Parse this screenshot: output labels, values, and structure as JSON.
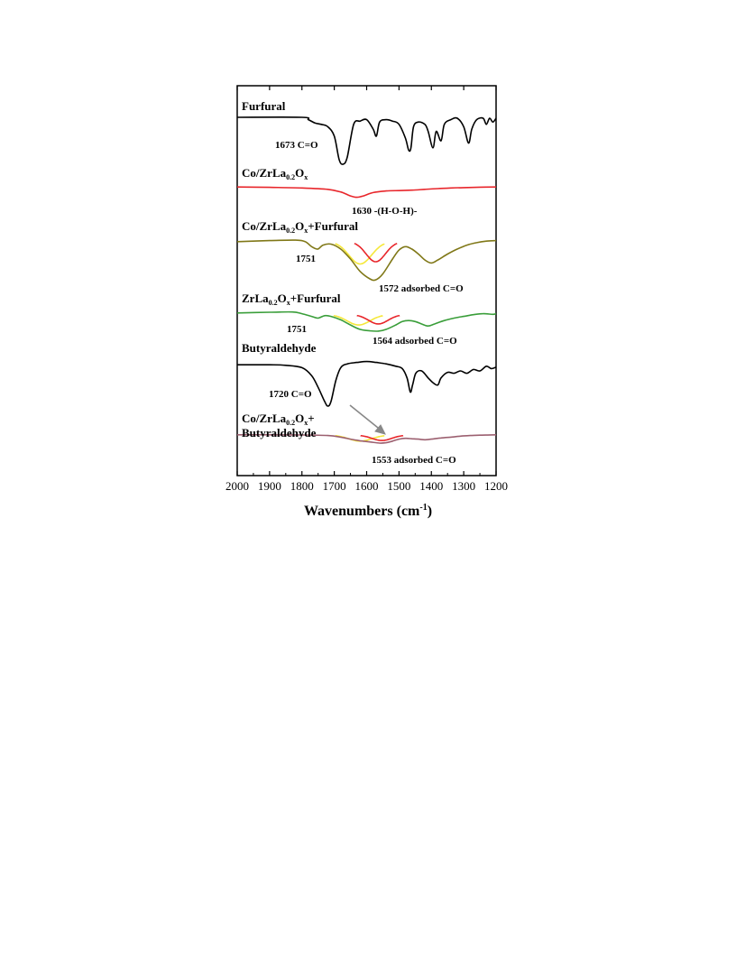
{
  "chart_data": {
    "type": "line",
    "title": "",
    "xlabel": "Wavenumbers (cm",
    "xlabel_sup": "-1",
    "xlabel_close": ")",
    "ylabel": "",
    "xlim": [
      2000,
      1200
    ],
    "x_reversed": true,
    "x_ticks": [
      "2000",
      "1900",
      "1800",
      "1700",
      "1600",
      "1500",
      "1400",
      "1300",
      "1200"
    ],
    "grid": false,
    "series": [
      {
        "name": "Furfural",
        "label_parts": [
          {
            "t": "Furfural"
          }
        ],
        "color": "#000000",
        "offset": 0,
        "points": [
          [
            2000,
            1.0
          ],
          [
            1800,
            1.0
          ],
          [
            1780,
            0.95
          ],
          [
            1760,
            0.88
          ],
          [
            1740,
            0.85
          ],
          [
            1720,
            0.8
          ],
          [
            1700,
            0.6
          ],
          [
            1685,
            0.1
          ],
          [
            1673,
            0.0
          ],
          [
            1660,
            0.15
          ],
          [
            1640,
            0.85
          ],
          [
            1620,
            0.92
          ],
          [
            1600,
            0.95
          ],
          [
            1580,
            0.75
          ],
          [
            1570,
            0.6
          ],
          [
            1560,
            0.9
          ],
          [
            1540,
            0.95
          ],
          [
            1520,
            0.92
          ],
          [
            1500,
            0.85
          ],
          [
            1480,
            0.55
          ],
          [
            1470,
            0.3
          ],
          [
            1463,
            0.35
          ],
          [
            1455,
            0.8
          ],
          [
            1440,
            0.9
          ],
          [
            1420,
            0.85
          ],
          [
            1410,
            0.7
          ],
          [
            1395,
            0.35
          ],
          [
            1385,
            0.7
          ],
          [
            1370,
            0.5
          ],
          [
            1360,
            0.85
          ],
          [
            1340,
            0.95
          ],
          [
            1320,
            0.98
          ],
          [
            1300,
            0.8
          ],
          [
            1285,
            0.45
          ],
          [
            1275,
            0.75
          ],
          [
            1260,
            0.95
          ],
          [
            1240,
            0.98
          ],
          [
            1230,
            0.85
          ],
          [
            1220,
            0.98
          ],
          [
            1210,
            0.9
          ],
          [
            1200,
            0.98
          ]
        ],
        "annotations": [
          {
            "text": "1673 C=O"
          }
        ]
      },
      {
        "name": "Co/ZrLa0.2Ox",
        "label_parts": [
          {
            "t": "Co/ZrLa"
          },
          {
            "t": "0.2",
            "sub": true
          },
          {
            "t": "O"
          },
          {
            "t": "x",
            "sub": true
          }
        ],
        "color": "#e8262b",
        "offset": 1,
        "points": [
          [
            2000,
            0.9
          ],
          [
            1900,
            0.88
          ],
          [
            1800,
            0.85
          ],
          [
            1720,
            0.78
          ],
          [
            1680,
            0.65
          ],
          [
            1650,
            0.45
          ],
          [
            1630,
            0.38
          ],
          [
            1610,
            0.45
          ],
          [
            1580,
            0.62
          ],
          [
            1540,
            0.7
          ],
          [
            1500,
            0.72
          ],
          [
            1460,
            0.74
          ],
          [
            1420,
            0.78
          ],
          [
            1380,
            0.82
          ],
          [
            1340,
            0.85
          ],
          [
            1300,
            0.87
          ],
          [
            1250,
            0.89
          ],
          [
            1200,
            0.9
          ]
        ],
        "annotations": [
          {
            "text": "1630 -(H-O-H)-"
          }
        ]
      },
      {
        "name": "Co/ZrLa0.2Ox+Furfural",
        "label_parts": [
          {
            "t": "Co/ZrLa"
          },
          {
            "t": "0.2",
            "sub": true
          },
          {
            "t": "O"
          },
          {
            "t": "x",
            "sub": true
          },
          {
            "t": "+Furfural"
          }
        ],
        "color": "#807818",
        "offset": 2,
        "points": [
          [
            2000,
            0.95
          ],
          [
            1900,
            0.97
          ],
          [
            1820,
            0.98
          ],
          [
            1790,
            0.95
          ],
          [
            1770,
            0.85
          ],
          [
            1751,
            0.8
          ],
          [
            1735,
            0.88
          ],
          [
            1710,
            0.9
          ],
          [
            1680,
            0.8
          ],
          [
            1650,
            0.6
          ],
          [
            1620,
            0.35
          ],
          [
            1590,
            0.2
          ],
          [
            1572,
            0.18
          ],
          [
            1550,
            0.3
          ],
          [
            1520,
            0.6
          ],
          [
            1500,
            0.78
          ],
          [
            1480,
            0.85
          ],
          [
            1460,
            0.8
          ],
          [
            1440,
            0.7
          ],
          [
            1420,
            0.58
          ],
          [
            1400,
            0.52
          ],
          [
            1380,
            0.58
          ],
          [
            1350,
            0.7
          ],
          [
            1320,
            0.8
          ],
          [
            1290,
            0.88
          ],
          [
            1260,
            0.93
          ],
          [
            1230,
            0.96
          ],
          [
            1200,
            0.97
          ]
        ],
        "annotations": [
          {
            "text": "1751"
          },
          {
            "text": "1572 adsorbed C=O"
          }
        ]
      },
      {
        "name": "ZrLa0.2Ox+Furfural",
        "label_parts": [
          {
            "t": "ZrLa"
          },
          {
            "t": "0.2",
            "sub": true
          },
          {
            "t": "O"
          },
          {
            "t": "x",
            "sub": true
          },
          {
            "t": "+Furfural"
          }
        ],
        "color": "#3a9e3a",
        "offset": 3,
        "points": [
          [
            2000,
            0.9
          ],
          [
            1900,
            0.92
          ],
          [
            1830,
            0.93
          ],
          [
            1800,
            0.88
          ],
          [
            1770,
            0.8
          ],
          [
            1751,
            0.75
          ],
          [
            1730,
            0.82
          ],
          [
            1710,
            0.8
          ],
          [
            1680,
            0.7
          ],
          [
            1650,
            0.55
          ],
          [
            1620,
            0.42
          ],
          [
            1590,
            0.38
          ],
          [
            1564,
            0.37
          ],
          [
            1540,
            0.42
          ],
          [
            1510,
            0.55
          ],
          [
            1490,
            0.65
          ],
          [
            1470,
            0.68
          ],
          [
            1450,
            0.65
          ],
          [
            1430,
            0.58
          ],
          [
            1410,
            0.52
          ],
          [
            1390,
            0.58
          ],
          [
            1360,
            0.68
          ],
          [
            1330,
            0.75
          ],
          [
            1300,
            0.8
          ],
          [
            1270,
            0.85
          ],
          [
            1240,
            0.88
          ],
          [
            1210,
            0.86
          ],
          [
            1200,
            0.88
          ]
        ],
        "annotations": [
          {
            "text": "1751"
          },
          {
            "text": "1564 adsorbed C=O"
          }
        ]
      },
      {
        "name": "Butyraldehyde",
        "label_parts": [
          {
            "t": "Butyraldehyde"
          }
        ],
        "color": "#000000",
        "offset": 4,
        "points": [
          [
            2000,
            0.88
          ],
          [
            1900,
            0.88
          ],
          [
            1850,
            0.87
          ],
          [
            1800,
            0.82
          ],
          [
            1770,
            0.65
          ],
          [
            1750,
            0.4
          ],
          [
            1730,
            0.1
          ],
          [
            1720,
            0.0
          ],
          [
            1710,
            0.1
          ],
          [
            1695,
            0.55
          ],
          [
            1680,
            0.82
          ],
          [
            1660,
            0.9
          ],
          [
            1630,
            0.93
          ],
          [
            1600,
            0.95
          ],
          [
            1570,
            0.93
          ],
          [
            1540,
            0.9
          ],
          [
            1510,
            0.85
          ],
          [
            1490,
            0.8
          ],
          [
            1475,
            0.6
          ],
          [
            1465,
            0.3
          ],
          [
            1458,
            0.45
          ],
          [
            1448,
            0.7
          ],
          [
            1430,
            0.75
          ],
          [
            1410,
            0.6
          ],
          [
            1395,
            0.5
          ],
          [
            1380,
            0.45
          ],
          [
            1370,
            0.6
          ],
          [
            1350,
            0.72
          ],
          [
            1330,
            0.7
          ],
          [
            1310,
            0.75
          ],
          [
            1290,
            0.7
          ],
          [
            1270,
            0.78
          ],
          [
            1250,
            0.75
          ],
          [
            1230,
            0.85
          ],
          [
            1215,
            0.8
          ],
          [
            1200,
            0.83
          ]
        ],
        "annotations": [
          {
            "text": "1720 C=O"
          }
        ]
      },
      {
        "name": "Co/ZrLa0.2Ox+ Butyraldehyde",
        "label_parts": [
          {
            "t": "Co/ZrLa"
          },
          {
            "t": "0.2",
            "sub": true
          },
          {
            "t": "O"
          },
          {
            "t": "x",
            "sub": true
          },
          {
            "t": "+"
          }
        ],
        "label_line2": "Butyraldehyde",
        "color": "#9c6070",
        "offset": 5,
        "points": [
          [
            2000,
            0.92
          ],
          [
            1900,
            0.92
          ],
          [
            1800,
            0.91
          ],
          [
            1720,
            0.88
          ],
          [
            1680,
            0.8
          ],
          [
            1650,
            0.7
          ],
          [
            1620,
            0.62
          ],
          [
            1590,
            0.56
          ],
          [
            1560,
            0.5
          ],
          [
            1540,
            0.52
          ],
          [
            1520,
            0.6
          ],
          [
            1500,
            0.7
          ],
          [
            1480,
            0.74
          ],
          [
            1460,
            0.72
          ],
          [
            1440,
            0.7
          ],
          [
            1420,
            0.67
          ],
          [
            1400,
            0.7
          ],
          [
            1370,
            0.76
          ],
          [
            1340,
            0.8
          ],
          [
            1310,
            0.85
          ],
          [
            1280,
            0.88
          ],
          [
            1250,
            0.9
          ],
          [
            1200,
            0.92
          ]
        ],
        "annotations": [
          {
            "text": "1553 adsorbed C=O"
          }
        ]
      }
    ],
    "fit_peaks": [
      {
        "series": "Co/ZrLa0.2Ox+Furfural",
        "yellow_center": 1620,
        "red_center": 1572
      },
      {
        "series": "ZrLa0.2Ox+Furfural",
        "yellow_center": 1625,
        "red_center": 1564
      },
      {
        "series": "Co/ZrLa0.2Ox+ Butyraldehyde",
        "yellow_center": 1620,
        "red_center": 1553
      }
    ]
  }
}
